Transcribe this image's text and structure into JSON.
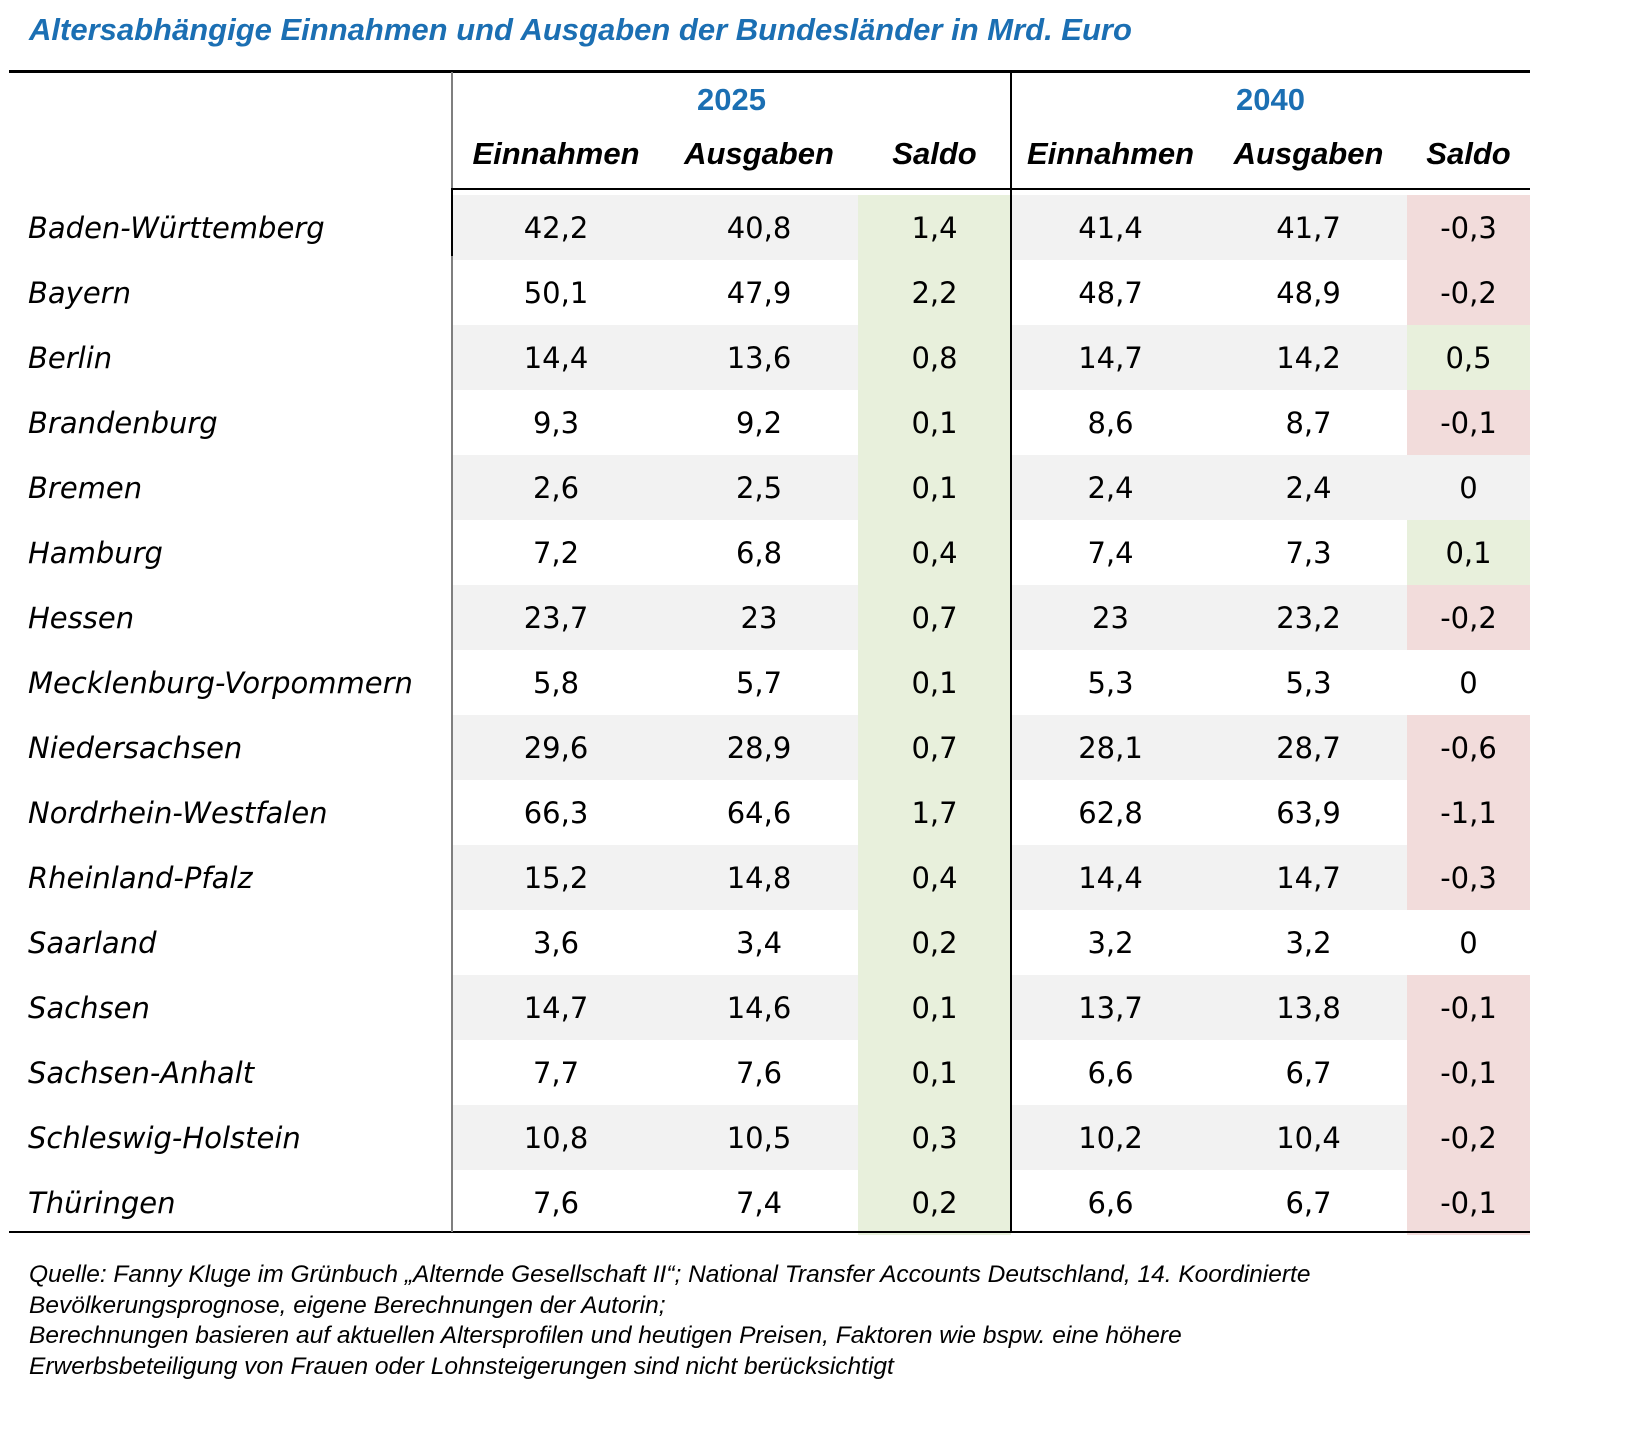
{
  "title": "Altersabhängige Einnahmen und Ausgaben der Bundesländer in Mrd. Euro",
  "colors": {
    "title": "#1b6fb3",
    "stripe": "#f2f2f2",
    "saldo_positive": "#e8f0dc",
    "saldo_negative": "#f2dcdb"
  },
  "groups": [
    {
      "year": "2025",
      "columns": [
        "Einnahmen",
        "Ausgaben",
        "Saldo"
      ]
    },
    {
      "year": "2040",
      "columns": [
        "Einnahmen",
        "Ausgaben",
        "Saldo"
      ]
    }
  ],
  "rows": [
    {
      "state": "Baden-Württemberg",
      "v2025": [
        "42,2",
        "40,8",
        "1,4"
      ],
      "v2040": [
        "41,4",
        "41,7",
        "-0,3"
      ],
      "saldo2040_status": "negative"
    },
    {
      "state": "Bayern",
      "v2025": [
        "50,1",
        "47,9",
        "2,2"
      ],
      "v2040": [
        "48,7",
        "48,9",
        "-0,2"
      ],
      "saldo2040_status": "negative"
    },
    {
      "state": "Berlin",
      "v2025": [
        "14,4",
        "13,6",
        "0,8"
      ],
      "v2040": [
        "14,7",
        "14,2",
        "0,5"
      ],
      "saldo2040_status": "positive"
    },
    {
      "state": "Brandenburg",
      "v2025": [
        "9,3",
        "9,2",
        "0,1"
      ],
      "v2040": [
        "8,6",
        "8,7",
        "-0,1"
      ],
      "saldo2040_status": "negative"
    },
    {
      "state": "Bremen",
      "v2025": [
        "2,6",
        "2,5",
        "0,1"
      ],
      "v2040": [
        "2,4",
        "2,4",
        "0"
      ],
      "saldo2040_status": "neutral"
    },
    {
      "state": "Hamburg",
      "v2025": [
        "7,2",
        "6,8",
        "0,4"
      ],
      "v2040": [
        "7,4",
        "7,3",
        "0,1"
      ],
      "saldo2040_status": "positive"
    },
    {
      "state": "Hessen",
      "v2025": [
        "23,7",
        "23",
        "0,7"
      ],
      "v2040": [
        "23",
        "23,2",
        "-0,2"
      ],
      "saldo2040_status": "negative"
    },
    {
      "state": "Mecklenburg-Vorpommern",
      "v2025": [
        "5,8",
        "5,7",
        "0,1"
      ],
      "v2040": [
        "5,3",
        "5,3",
        "0"
      ],
      "saldo2040_status": "neutral"
    },
    {
      "state": "Niedersachsen",
      "v2025": [
        "29,6",
        "28,9",
        "0,7"
      ],
      "v2040": [
        "28,1",
        "28,7",
        "-0,6"
      ],
      "saldo2040_status": "negative"
    },
    {
      "state": "Nordrhein-Westfalen",
      "v2025": [
        "66,3",
        "64,6",
        "1,7"
      ],
      "v2040": [
        "62,8",
        "63,9",
        "-1,1"
      ],
      "saldo2040_status": "negative"
    },
    {
      "state": "Rheinland-Pfalz",
      "v2025": [
        "15,2",
        "14,8",
        "0,4"
      ],
      "v2040": [
        "14,4",
        "14,7",
        "-0,3"
      ],
      "saldo2040_status": "negative"
    },
    {
      "state": "Saarland",
      "v2025": [
        "3,6",
        "3,4",
        "0,2"
      ],
      "v2040": [
        "3,2",
        "3,2",
        "0"
      ],
      "saldo2040_status": "neutral"
    },
    {
      "state": "Sachsen",
      "v2025": [
        "14,7",
        "14,6",
        "0,1"
      ],
      "v2040": [
        "13,7",
        "13,8",
        "-0,1"
      ],
      "saldo2040_status": "negative"
    },
    {
      "state": "Sachsen-Anhalt",
      "v2025": [
        "7,7",
        "7,6",
        "0,1"
      ],
      "v2040": [
        "6,6",
        "6,7",
        "-0,1"
      ],
      "saldo2040_status": "negative"
    },
    {
      "state": "Schleswig-Holstein",
      "v2025": [
        "10,8",
        "10,5",
        "0,3"
      ],
      "v2040": [
        "10,2",
        "10,4",
        "-0,2"
      ],
      "saldo2040_status": "negative"
    },
    {
      "state": "Thüringen",
      "v2025": [
        "7,6",
        "7,4",
        "0,2"
      ],
      "v2040": [
        "6,6",
        "6,7",
        "-0,1"
      ],
      "saldo2040_status": "negative"
    }
  ],
  "footnote": [
    "Quelle: Fanny Kluge im Grünbuch „Alternde Gesellschaft II“; National Transfer Accounts Deutschland, 14. Koordinierte",
    "Bevölkerungsprognose, eigene Berechnungen der Autorin;",
    "Berechnungen basieren auf aktuellen Altersprofilen und heutigen Preisen, Faktoren wie bspw. eine höhere",
    "Erwerbsbeteiligung von Frauen oder Lohnsteigerungen sind nicht berücksichtigt"
  ]
}
